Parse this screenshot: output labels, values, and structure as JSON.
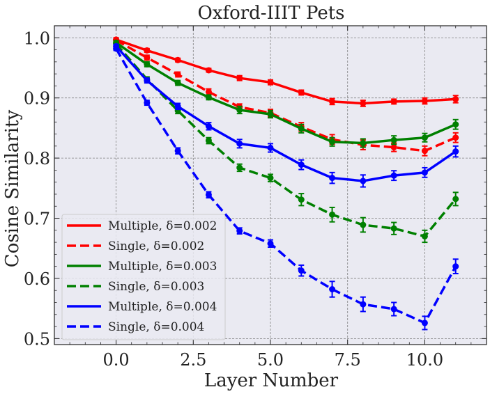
{
  "chart_data": {
    "type": "line",
    "title": "Oxford-IIIT Pets",
    "xlabel": "Layer Number",
    "ylabel": "Cosine Similarity",
    "xlim": [
      -2.0,
      12.0
    ],
    "ylim": [
      0.49,
      1.02
    ],
    "xticks": [
      0.0,
      2.5,
      5.0,
      7.5,
      10.0
    ],
    "xtick_labels": [
      "0.0",
      "2.5",
      "5.0",
      "7.5",
      "10.0"
    ],
    "yticks": [
      0.5,
      0.6,
      0.7,
      0.8,
      0.9,
      1.0
    ],
    "ytick_labels": [
      "0.5",
      "0.6",
      "0.7",
      "0.8",
      "0.9",
      "1.0"
    ],
    "x": [
      0,
      1,
      2,
      3,
      4,
      5,
      6,
      7,
      8,
      9,
      10,
      11
    ],
    "grid": true,
    "legend_position": "lower-left",
    "background_color": "#eaeaf2",
    "grid_color": "#808080",
    "series": [
      {
        "name": "Multiple, δ=0.002",
        "color": "#ff0000",
        "style": "solid",
        "values": [
          0.997,
          0.979,
          0.963,
          0.946,
          0.933,
          0.926,
          0.909,
          0.894,
          0.891,
          0.894,
          0.895,
          0.898
        ],
        "errors": [
          0.003,
          0.003,
          0.003,
          0.003,
          0.004,
          0.004,
          0.004,
          0.005,
          0.005,
          0.004,
          0.005,
          0.006
        ]
      },
      {
        "name": "Single, δ=0.002",
        "color": "#ff0000",
        "style": "dashed",
        "values": [
          0.996,
          0.967,
          0.939,
          0.91,
          0.885,
          0.875,
          0.852,
          0.831,
          0.822,
          0.818,
          0.812,
          0.834
        ],
        "errors": [
          0.003,
          0.004,
          0.004,
          0.005,
          0.005,
          0.006,
          0.007,
          0.008,
          0.008,
          0.007,
          0.008,
          0.008
        ]
      },
      {
        "name": "Multiple, δ=0.003",
        "color": "#008000",
        "style": "solid",
        "values": [
          0.992,
          0.956,
          0.925,
          0.901,
          0.88,
          0.873,
          0.849,
          0.827,
          0.825,
          0.83,
          0.834,
          0.856
        ],
        "errors": [
          0.003,
          0.004,
          0.004,
          0.004,
          0.006,
          0.006,
          0.007,
          0.007,
          0.007,
          0.007,
          0.007,
          0.008
        ]
      },
      {
        "name": "Single, δ=0.003",
        "color": "#008000",
        "style": "dashed",
        "values": [
          0.99,
          0.931,
          0.879,
          0.829,
          0.784,
          0.767,
          0.731,
          0.706,
          0.689,
          0.683,
          0.67,
          0.732
        ],
        "errors": [
          0.003,
          0.004,
          0.005,
          0.005,
          0.006,
          0.006,
          0.01,
          0.012,
          0.012,
          0.01,
          0.01,
          0.011
        ]
      },
      {
        "name": "Multiple, δ=0.004",
        "color": "#0000ff",
        "style": "solid",
        "values": [
          0.986,
          0.929,
          0.886,
          0.853,
          0.824,
          0.817,
          0.789,
          0.767,
          0.762,
          0.771,
          0.776,
          0.811
        ],
        "errors": [
          0.003,
          0.004,
          0.005,
          0.006,
          0.007,
          0.007,
          0.008,
          0.009,
          0.01,
          0.008,
          0.008,
          0.009
        ]
      },
      {
        "name": "Single, δ=0.004",
        "color": "#0000ff",
        "style": "dashed",
        "values": [
          0.982,
          0.892,
          0.812,
          0.739,
          0.679,
          0.658,
          0.613,
          0.582,
          0.557,
          0.549,
          0.526,
          0.62
        ],
        "errors": [
          0.003,
          0.004,
          0.005,
          0.005,
          0.005,
          0.006,
          0.009,
          0.013,
          0.012,
          0.011,
          0.011,
          0.012
        ]
      }
    ]
  }
}
